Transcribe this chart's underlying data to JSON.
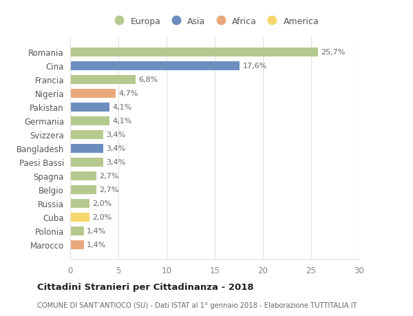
{
  "categories": [
    "Romania",
    "Cina",
    "Francia",
    "Nigeria",
    "Pakistan",
    "Germania",
    "Svizzera",
    "Bangladesh",
    "Paesi Bassi",
    "Spagna",
    "Belgio",
    "Russia",
    "Cuba",
    "Polonia",
    "Marocco"
  ],
  "values": [
    25.7,
    17.6,
    6.8,
    4.7,
    4.1,
    4.1,
    3.4,
    3.4,
    3.4,
    2.7,
    2.7,
    2.0,
    2.0,
    1.4,
    1.4
  ],
  "labels": [
    "25,7%",
    "17,6%",
    "6,8%",
    "4,7%",
    "4,1%",
    "4,1%",
    "3,4%",
    "3,4%",
    "3,4%",
    "2,7%",
    "2,7%",
    "2,0%",
    "2,0%",
    "1,4%",
    "1,4%"
  ],
  "colors": [
    "#b5c98e",
    "#6b8ebf",
    "#b5c98e",
    "#e8a87c",
    "#6b8ebf",
    "#b5c98e",
    "#b5c98e",
    "#6b8ebf",
    "#b5c98e",
    "#b5c98e",
    "#b5c98e",
    "#b5c98e",
    "#f5d76e",
    "#b5c98e",
    "#e8a87c"
  ],
  "legend_labels": [
    "Europa",
    "Asia",
    "Africa",
    "America"
  ],
  "legend_colors": [
    "#b5c98e",
    "#6b8ebf",
    "#e8a87c",
    "#f5d76e"
  ],
  "title": "Cittadini Stranieri per Cittadinanza - 2018",
  "subtitle": "COMUNE DI SANT’ANTIOCO (SU) - Dati ISTAT al 1° gennaio 2018 - Elaborazione TUTTITALIA.IT",
  "xlim": [
    0,
    30
  ],
  "xticks": [
    0,
    5,
    10,
    15,
    20,
    25,
    30
  ],
  "background_color": "#ffffff",
  "grid_color": "#e0e0e0"
}
